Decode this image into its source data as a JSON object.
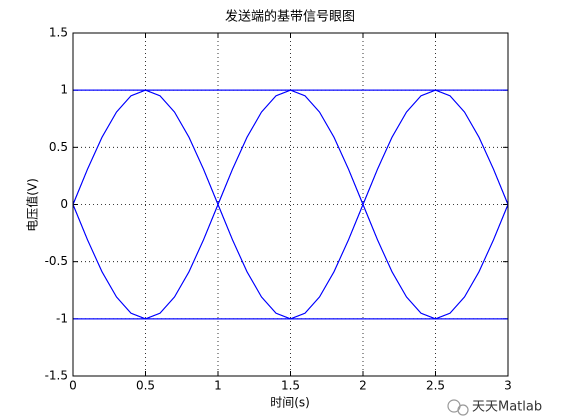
{
  "chart_data": {
    "type": "line",
    "title": "发送端的基带信号眼图",
    "x_label": "时间(s)",
    "y_label": "电压值(V)",
    "watermark": "天天Matlab",
    "xlim": [
      0,
      3
    ],
    "ylim": [
      -1.5,
      1.5
    ],
    "xticks": [
      0,
      0.5,
      1,
      1.5,
      2,
      2.5,
      3
    ],
    "yticks": [
      -1.5,
      -1,
      -0.5,
      0,
      0.5,
      1,
      1.5
    ],
    "grid": true,
    "x": [
      0,
      0.1,
      0.2,
      0.3,
      0.4,
      0.5,
      0.6,
      0.7,
      0.8,
      0.9,
      1,
      1.1,
      1.2,
      1.3,
      1.4,
      1.5,
      1.6,
      1.7,
      1.8,
      1.9,
      2,
      2.1,
      2.2,
      2.3,
      2.4,
      2.5,
      2.6,
      2.7,
      2.8,
      2.9,
      3
    ],
    "series": [
      {
        "color": "#0000ff",
        "values": [
          0,
          0.309,
          0.588,
          0.809,
          0.951,
          1,
          1,
          1,
          1,
          1,
          1,
          1,
          1,
          1,
          1,
          1,
          0.951,
          0.809,
          0.588,
          0.309,
          0,
          -0.309,
          -0.588,
          -0.809,
          -0.951,
          -1,
          -0.951,
          -0.809,
          -0.588,
          -0.309,
          0
        ]
      },
      {
        "color": "#0000ff",
        "values": [
          0,
          -0.309,
          -0.588,
          -0.809,
          -0.951,
          -1,
          -1,
          -1,
          -1,
          -1,
          -1,
          -1,
          -1,
          -1,
          -1,
          -1,
          -0.951,
          -0.809,
          -0.588,
          -0.309,
          0,
          0.309,
          0.588,
          0.809,
          0.951,
          1,
          0.951,
          0.809,
          0.588,
          0.309,
          0
        ]
      },
      {
        "color": "#0000ff",
        "values": [
          1,
          1,
          1,
          1,
          1,
          1,
          0.951,
          0.809,
          0.588,
          0.309,
          0,
          -0.309,
          -0.588,
          -0.809,
          -0.951,
          -1,
          -0.951,
          -0.809,
          -0.588,
          -0.309,
          0,
          0.309,
          0.588,
          0.809,
          0.951,
          1,
          1,
          1,
          1,
          1,
          1
        ]
      },
      {
        "color": "#0000ff",
        "values": [
          -1,
          -1,
          -1,
          -1,
          -1,
          -1,
          -0.951,
          -0.809,
          -0.588,
          -0.309,
          0,
          0.309,
          0.588,
          0.809,
          0.951,
          1,
          0.951,
          0.809,
          0.588,
          0.309,
          0,
          -0.309,
          -0.588,
          -0.809,
          -0.951,
          -1,
          -1,
          -1,
          -1,
          -1,
          -1
        ]
      },
      {
        "color": "#0000ff",
        "values": [
          1,
          1,
          1,
          1,
          1,
          1,
          1,
          1,
          1,
          1,
          1,
          1,
          1,
          1,
          1,
          1,
          1,
          1,
          1,
          1,
          1,
          1,
          1,
          1,
          1,
          1,
          1,
          1,
          1,
          1,
          1
        ]
      },
      {
        "color": "#0000ff",
        "values": [
          -1,
          -1,
          -1,
          -1,
          -1,
          -1,
          -1,
          -1,
          -1,
          -1,
          -1,
          -1,
          -1,
          -1,
          -1,
          -1,
          -1,
          -1,
          -1,
          -1,
          -1,
          -1,
          -1,
          -1,
          -1,
          -1,
          -1,
          -1,
          -1,
          -1,
          -1
        ]
      },
      {
        "color": "#0000ff",
        "values": [
          0,
          0.309,
          0.588,
          0.809,
          0.951,
          1,
          0.951,
          0.809,
          0.588,
          0.309,
          0,
          -0.309,
          -0.588,
          -0.809,
          -0.951,
          -1,
          -1,
          -1,
          -1,
          -1,
          -1,
          -1,
          -1,
          -1,
          -1,
          -1,
          -0.951,
          -0.809,
          -0.588,
          -0.309,
          0
        ]
      },
      {
        "color": "#0000ff",
        "values": [
          0,
          -0.309,
          -0.588,
          -0.809,
          -0.951,
          -1,
          -0.951,
          -0.809,
          -0.588,
          -0.309,
          0,
          0.309,
          0.588,
          0.809,
          0.951,
          1,
          1,
          1,
          1,
          1,
          1,
          1,
          1,
          1,
          1,
          1,
          0.951,
          0.809,
          0.588,
          0.309,
          0
        ]
      }
    ]
  }
}
